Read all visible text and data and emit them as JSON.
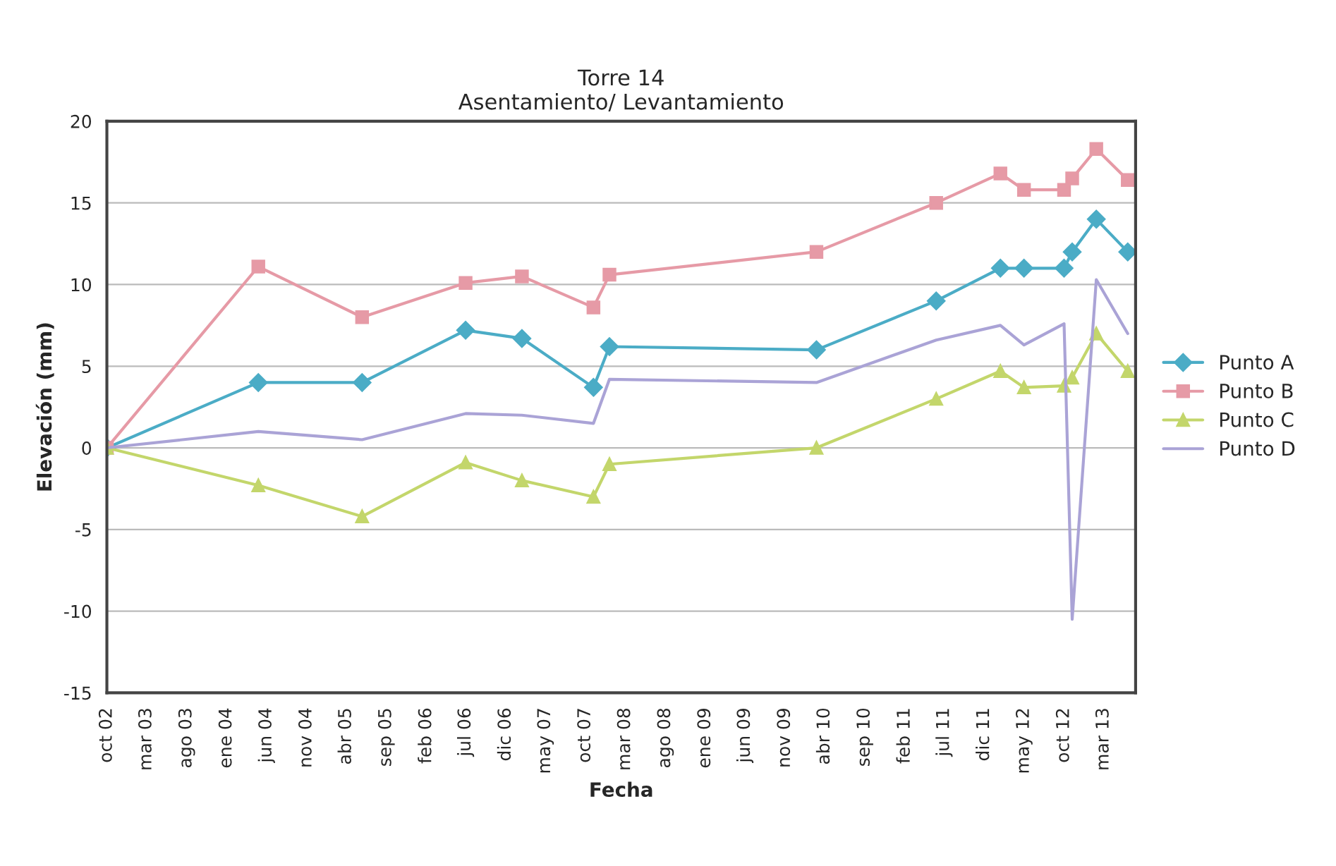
{
  "chart_data": {
    "type": "line",
    "title": "Torre 14\nAsentamiento/ Levantamiento",
    "xlabel": "Fecha",
    "ylabel": "Elevación (mm)",
    "x": [
      "2002-10",
      "2004-05",
      "2005-06",
      "2006-07",
      "2007-02",
      "2007-11",
      "2008-01",
      "2010-03",
      "2011-06",
      "2012-02",
      "2012-05",
      "2012-10",
      "2012-11",
      "2013-02",
      "2013-06"
    ],
    "series": [
      {
        "name": "Punto A",
        "color": "#4bacc6",
        "marker": "diamond",
        "values": [
          0,
          4,
          4,
          7.2,
          6.7,
          3.7,
          6.2,
          6,
          9,
          11,
          11,
          11,
          12,
          14,
          12
        ]
      },
      {
        "name": "Punto B",
        "color": "#e69aa6",
        "marker": "square",
        "values": [
          0,
          11.1,
          8,
          10.1,
          10.5,
          8.6,
          10.6,
          12,
          15,
          16.8,
          15.8,
          15.8,
          16.5,
          18.3,
          16.4
        ]
      },
      {
        "name": "Punto C",
        "color": "#c3d66b",
        "marker": "triangle",
        "values": [
          0,
          -2.3,
          -4.2,
          -0.9,
          -2,
          -3,
          -1,
          0,
          3,
          4.7,
          3.7,
          3.8,
          4.3,
          7,
          4.7
        ]
      },
      {
        "name": "Punto D",
        "color": "#aaa3d6",
        "marker": "none",
        "values": [
          0,
          1,
          0.5,
          2.1,
          2,
          1.5,
          4.2,
          4,
          6.6,
          7.5,
          6.3,
          7.6,
          -10.5,
          10.3,
          7
        ]
      }
    ],
    "xlim": [
      "2002-10",
      "2013-07"
    ],
    "xticks": [
      {
        "value": "2002-10",
        "label": "oct 02"
      },
      {
        "value": "2003-03",
        "label": "mar 03"
      },
      {
        "value": "2003-08",
        "label": "ago 03"
      },
      {
        "value": "2004-01",
        "label": "ene 04"
      },
      {
        "value": "2004-06",
        "label": "jun 04"
      },
      {
        "value": "2004-11",
        "label": "nov 04"
      },
      {
        "value": "2005-04",
        "label": "abr 05"
      },
      {
        "value": "2005-09",
        "label": "sep 05"
      },
      {
        "value": "2006-02",
        "label": "feb 06"
      },
      {
        "value": "2006-07",
        "label": "jul 06"
      },
      {
        "value": "2006-12",
        "label": "dic 06"
      },
      {
        "value": "2007-05",
        "label": "may 07"
      },
      {
        "value": "2007-10",
        "label": "oct 07"
      },
      {
        "value": "2008-03",
        "label": "mar 08"
      },
      {
        "value": "2008-08",
        "label": "ago 08"
      },
      {
        "value": "2009-01",
        "label": "ene 09"
      },
      {
        "value": "2009-06",
        "label": "jun 09"
      },
      {
        "value": "2009-11",
        "label": "nov 09"
      },
      {
        "value": "2010-04",
        "label": "abr 10"
      },
      {
        "value": "2010-09",
        "label": "sep 10"
      },
      {
        "value": "2011-02",
        "label": "feb 11"
      },
      {
        "value": "2011-07",
        "label": "jul 11"
      },
      {
        "value": "2011-12",
        "label": "dic 11"
      },
      {
        "value": "2012-05",
        "label": "may 12"
      },
      {
        "value": "2012-10",
        "label": "oct 12"
      },
      {
        "value": "2013-03",
        "label": "mar 13"
      }
    ],
    "ylim": [
      -15,
      20
    ],
    "yticks": [
      -15,
      -10,
      -5,
      0,
      5,
      10,
      15,
      20
    ],
    "grid": "y",
    "legend": "right",
    "line_style": "solid"
  }
}
